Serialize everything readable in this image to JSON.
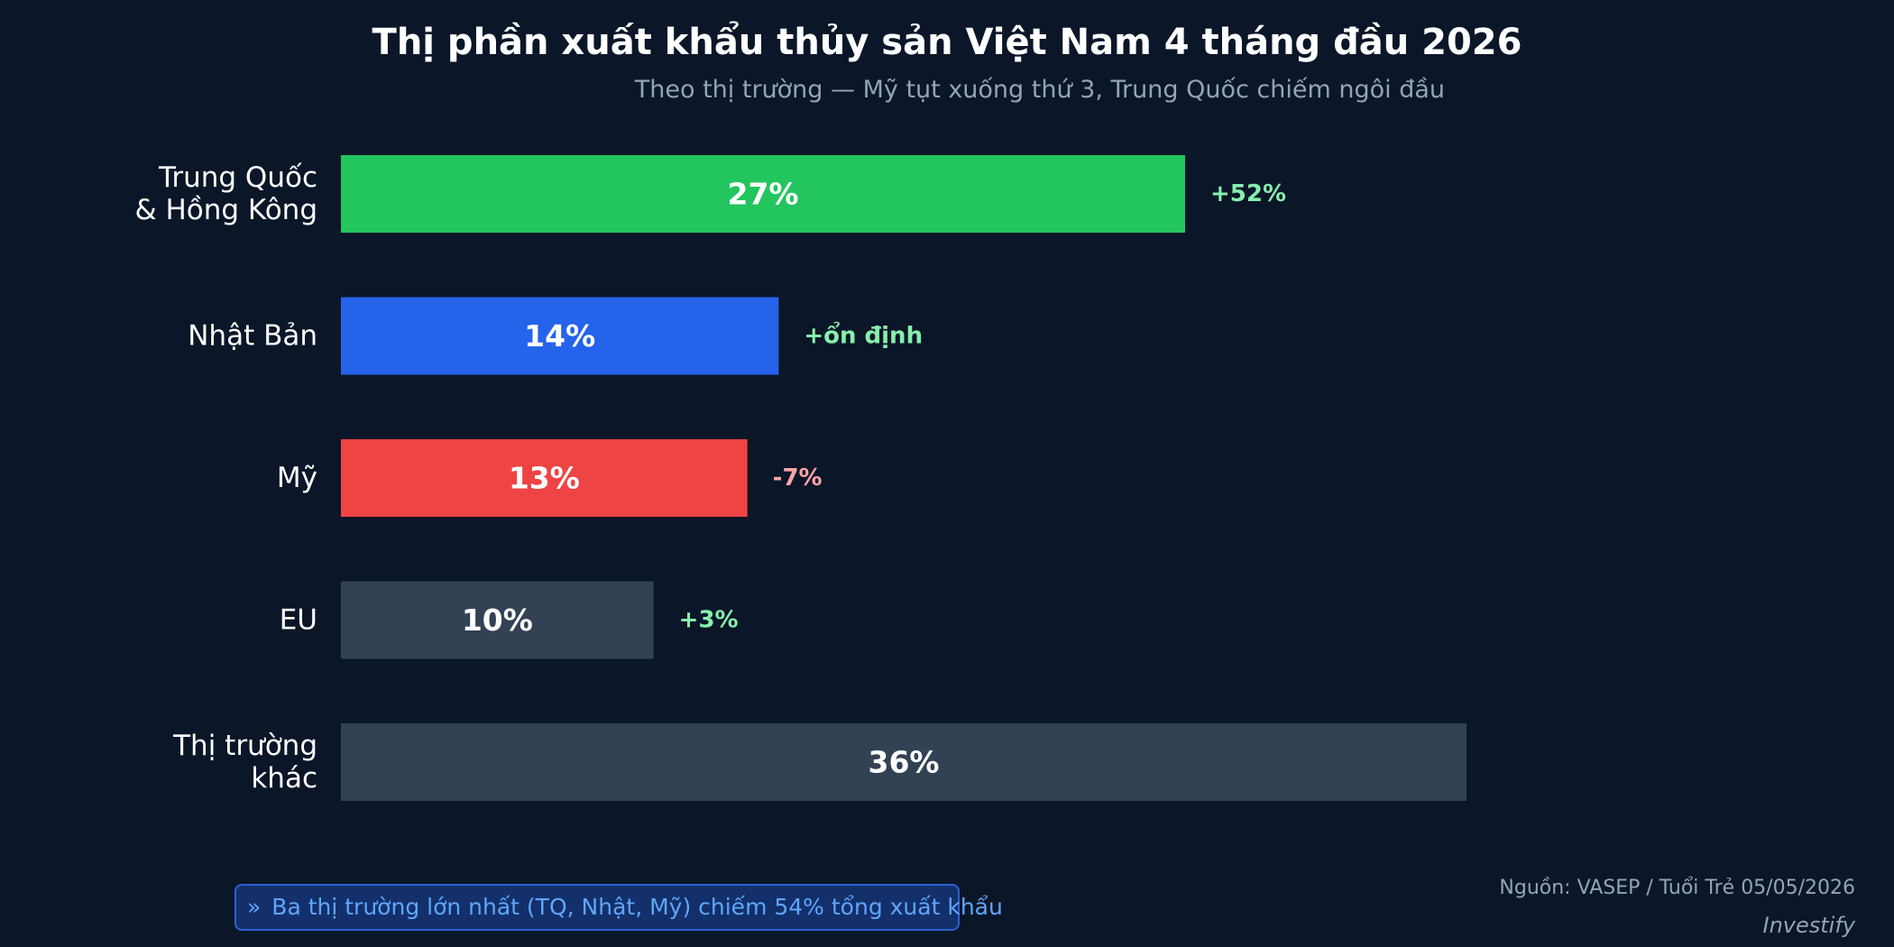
{
  "header": {
    "title": "Thị phần xuất khẩu thủy sản Việt Nam 4 tháng đầu 2026",
    "subtitle": "Theo thị trường — Mỹ tụt xuống thứ 3, Trung Quốc chiếm ngôi đầu"
  },
  "chart_data": {
    "type": "bar",
    "orientation": "horizontal",
    "title": "Thị phần xuất khẩu thủy sản Việt Nam 4 tháng đầu 2026",
    "subtitle": "Theo thị trường — Mỹ tụt xuống thứ 3, Trung Quốc chiếm ngôi đầu",
    "xlim": [
      0,
      36
    ],
    "grid": false,
    "legend": "none",
    "categories": [
      [
        "Trung Quốc",
        "& Hồng Kông"
      ],
      [
        "Nhật Bản"
      ],
      [
        "Mỹ"
      ],
      [
        "EU"
      ],
      [
        "Thị trường",
        "khác"
      ]
    ],
    "values": [
      27,
      14,
      13,
      10,
      36
    ],
    "value_labels": [
      "27%",
      "14%",
      "13%",
      "10%",
      "36%"
    ],
    "change_labels": [
      "+52%",
      "+ổn định",
      "-7%",
      "+3%",
      ""
    ],
    "colors": [
      "#22c55e",
      "#2563eb",
      "#ef4444",
      "#334155",
      "#334155"
    ],
    "change_colors": [
      "#86efac",
      "#86efac",
      "#fca5a5",
      "#86efac",
      "#86efac"
    ]
  },
  "callout": {
    "chevron": "»",
    "text": "Ba thị trường lớn nhất (TQ, Nhật, Mỹ) chiếm 54% tổng xuất khẩu"
  },
  "footer": {
    "source": "Nguồn: VASEP / Tuổi Trẻ 05/05/2026",
    "brand": "Investify"
  }
}
